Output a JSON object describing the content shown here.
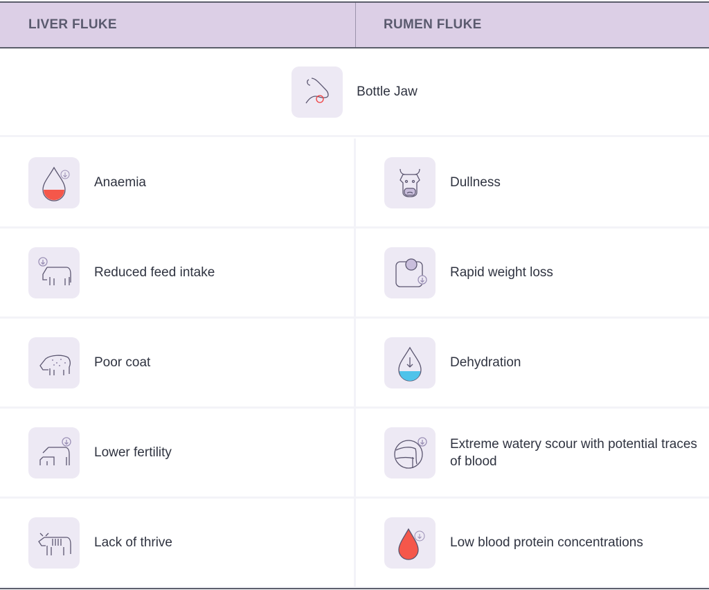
{
  "header": {
    "left": "LIVER FLUKE",
    "right": "RUMEN FLUKE"
  },
  "shared": {
    "label": "Bottle Jaw",
    "icon": "cow-head-jaw-icon"
  },
  "rows": [
    {
      "left": {
        "label": "Anaemia",
        "icon": "blood-drop-low-icon"
      },
      "right": {
        "label": "Dullness",
        "icon": "sad-cow-face-icon"
      }
    },
    {
      "left": {
        "label": "Reduced feed intake",
        "icon": "cow-eating-down-icon"
      },
      "right": {
        "label": "Rapid weight loss",
        "icon": "scale-down-icon"
      }
    },
    {
      "left": {
        "label": "Poor coat",
        "icon": "cow-spotted-coat-icon"
      },
      "right": {
        "label": "Dehydration",
        "icon": "water-drop-low-icon"
      }
    },
    {
      "left": {
        "label": "Lower fertility",
        "icon": "cow-calf-down-icon"
      },
      "right": {
        "label": "Extreme watery scour with potential traces of blood",
        "icon": "cow-rear-scour-icon"
      }
    },
    {
      "left": {
        "label": "Lack of thrive",
        "icon": "thin-cow-icon"
      },
      "right": {
        "label": "Low blood protein concentrations",
        "icon": "blood-drop-full-icon"
      }
    }
  ],
  "colors": {
    "header_bg": "#dccfe6",
    "icon_bg": "#ede9f4",
    "red": "#f5574a",
    "blue": "#4ec3ea"
  }
}
